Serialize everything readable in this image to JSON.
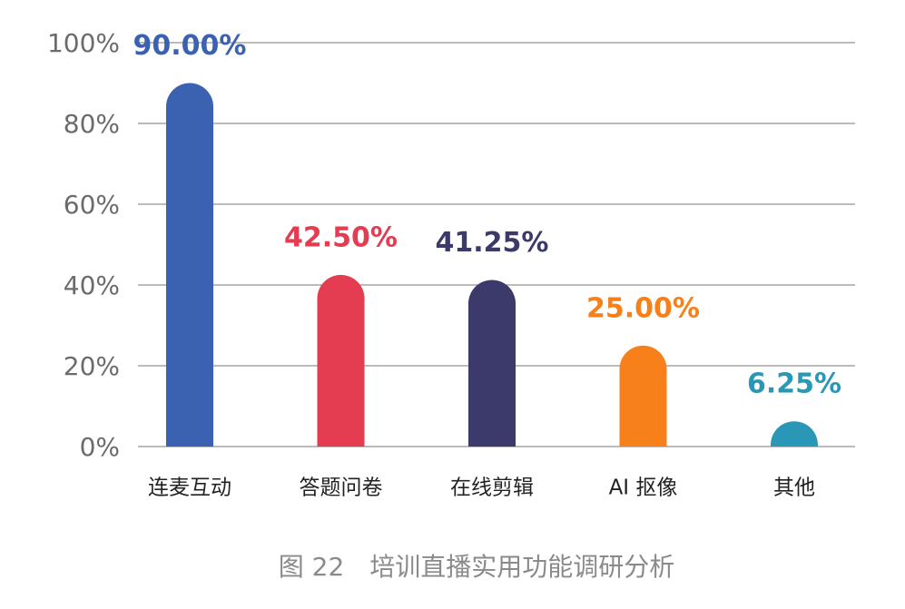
{
  "chart_data": {
    "type": "bar",
    "title": "图 22　培训直播实用功能调研分析",
    "categories": [
      "连麦互动",
      "答题问卷",
      "在线剪辑",
      "AI 抠像",
      "其他"
    ],
    "values": [
      90,
      42.5,
      41.25,
      25,
      6.25
    ],
    "value_labels": [
      "90.00%",
      "42.50%",
      "41.25%",
      "25.00%",
      "6.25%"
    ],
    "colors": [
      "#3a62b0",
      "#e43c51",
      "#3c396b",
      "#f7801a",
      "#2a97b6"
    ],
    "ylim": [
      0,
      100
    ],
    "yticks": [
      {
        "value": 0,
        "label": "0%"
      },
      {
        "value": 20,
        "label": "20%"
      },
      {
        "value": 40,
        "label": "40%"
      },
      {
        "value": 60,
        "label": "60%"
      },
      {
        "value": 80,
        "label": "80%"
      },
      {
        "value": 100,
        "label": "100%"
      }
    ],
    "grid": true
  }
}
